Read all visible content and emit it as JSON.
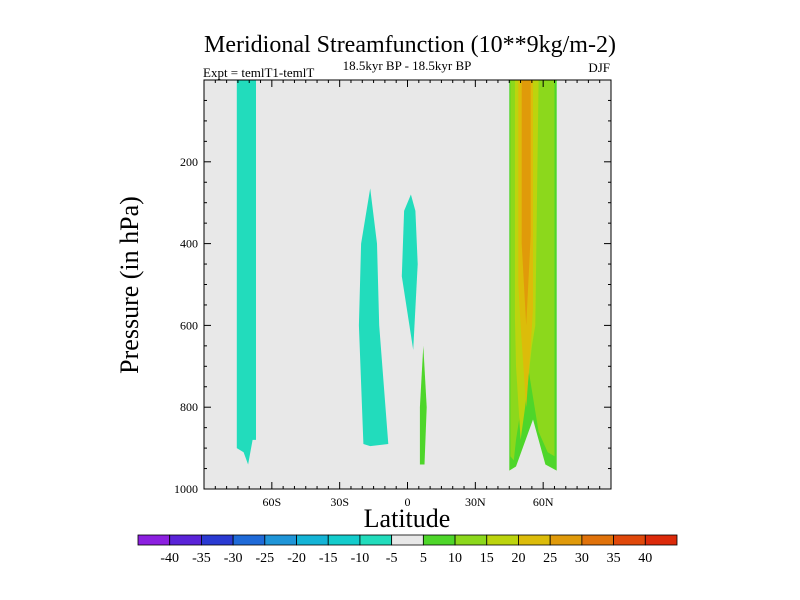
{
  "chart_data": {
    "type": "filled-contour",
    "title": "Meridional Streamfunction (10**9kg/m-2)",
    "left_string": "Expt = temlT1-temlT",
    "center_string": "18.5kyr BP - 18.5kyr BP",
    "right_string": "DJF",
    "xlabel": "Latitude",
    "ylabel": "Pressure (in hPa)",
    "xlim": [
      -90,
      90
    ],
    "ylim": [
      1000,
      0
    ],
    "x_ticks": [
      {
        "value": -60,
        "label": "60S"
      },
      {
        "value": -30,
        "label": "30S"
      },
      {
        "value": 0,
        "label": "0"
      },
      {
        "value": 30,
        "label": "30N"
      },
      {
        "value": 60,
        "label": "60N"
      }
    ],
    "y_ticks": [
      {
        "value": 200,
        "label": "200"
      },
      {
        "value": 400,
        "label": "400"
      },
      {
        "value": 600,
        "label": "600"
      },
      {
        "value": 800,
        "label": "800"
      },
      {
        "value": 1000,
        "label": "1000"
      }
    ],
    "background_color": "#e8e8e8",
    "colorbar": {
      "levels": [
        "-40",
        "-35",
        "-30",
        "-25",
        "-20",
        "-15",
        "-10",
        "-5",
        "5",
        "10",
        "15",
        "20",
        "25",
        "30",
        "35",
        "40"
      ],
      "colors": [
        "#8c20e0",
        "#5a23d8",
        "#2a3ad2",
        "#1f6ad8",
        "#1f95d8",
        "#14b4d6",
        "#14cccc",
        "#22dcbc",
        "#e8e8e8",
        "#4ed62a",
        "#8cd81c",
        "#bcd40e",
        "#dcbc0a",
        "#e09a0a",
        "#e0720a",
        "#e0480a",
        "#dc2a0a"
      ]
    },
    "regions": [
      {
        "name": "region-neg-5-to-10-south-polar",
        "level": "-5 to -10",
        "color": "#22dcbc",
        "points": [
          [
            -75.5,
            0
          ],
          [
            -75.5,
            900
          ],
          [
            -72.5,
            910
          ],
          [
            -70.5,
            940
          ],
          [
            -68.5,
            880
          ],
          [
            -67,
            880
          ],
          [
            -67,
            0
          ]
        ]
      },
      {
        "name": "region-neg-5-to-10-south-subtropics",
        "level": "-5 to -10",
        "color": "#22dcbc",
        "points": [
          [
            -19.5,
            890
          ],
          [
            -21.5,
            600
          ],
          [
            -20.5,
            400
          ],
          [
            -16.5,
            265
          ],
          [
            -13.5,
            400
          ],
          [
            -12.5,
            600
          ],
          [
            -8.5,
            890
          ],
          [
            -16.5,
            895
          ]
        ]
      },
      {
        "name": "region-neg-5-to-10-equator",
        "level": "-5 to -10",
        "color": "#22dcbc",
        "points": [
          [
            1.5,
            280
          ],
          [
            3.5,
            320
          ],
          [
            4.5,
            450
          ],
          [
            2.5,
            660
          ],
          [
            -2.5,
            480
          ],
          [
            -1.5,
            320
          ]
        ]
      },
      {
        "name": "region-5-to-10-equator",
        "level": "5 to 10",
        "color": "#4ed62a",
        "points": [
          [
            5.5,
            940
          ],
          [
            5.5,
            800
          ],
          [
            7,
            650
          ],
          [
            8.5,
            800
          ],
          [
            7.5,
            940
          ]
        ]
      },
      {
        "name": "region-5-to-10-north",
        "level": "5 to 10",
        "color": "#4ed62a",
        "points": [
          [
            45,
            0
          ],
          [
            45,
            955
          ],
          [
            48,
            945
          ],
          [
            55.5,
            830
          ],
          [
            61,
            940
          ],
          [
            66,
            955
          ],
          [
            66,
            0
          ]
        ]
      },
      {
        "name": "region-10-to-15-north",
        "level": "10 to 15",
        "color": "#8cd81c",
        "points": [
          [
            45.5,
            0
          ],
          [
            45.5,
            920
          ],
          [
            47,
            930
          ],
          [
            48,
            880
          ],
          [
            50.5,
            790
          ],
          [
            53,
            690
          ],
          [
            58,
            860
          ],
          [
            62,
            910
          ],
          [
            65,
            920
          ],
          [
            65,
            0
          ]
        ]
      },
      {
        "name": "region-15-to-20-north",
        "level": "15 to 20",
        "color": "#bcd40e",
        "points": [
          [
            47.5,
            0
          ],
          [
            47.5,
            580
          ],
          [
            48,
            700
          ],
          [
            50,
            880
          ],
          [
            52,
            800
          ],
          [
            55,
            650
          ],
          [
            56.5,
            600
          ],
          [
            58,
            0
          ]
        ]
      },
      {
        "name": "region-20-to-25-north",
        "level": "20 to 25",
        "color": "#dcbc0a",
        "points": [
          [
            49,
            0
          ],
          [
            49,
            500
          ],
          [
            50,
            600
          ],
          [
            52.5,
            800
          ],
          [
            54.5,
            650
          ],
          [
            55.5,
            560
          ],
          [
            55.5,
            0
          ]
        ]
      },
      {
        "name": "region-25-to-30-north",
        "level": "25 to 30",
        "color": "#e09a0a",
        "points": [
          [
            50.5,
            0
          ],
          [
            50.5,
            400
          ],
          [
            52.5,
            600
          ],
          [
            54.5,
            380
          ],
          [
            54.5,
            0
          ]
        ]
      }
    ]
  }
}
